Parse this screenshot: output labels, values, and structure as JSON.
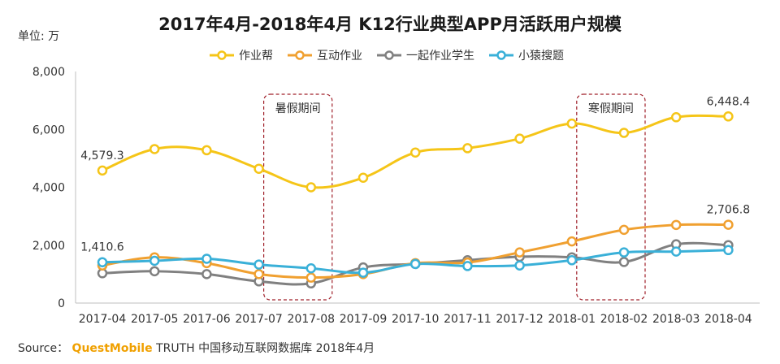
{
  "chart_data": {
    "type": "line",
    "title": "2017年4月-2018年4月 K12行业典型APP月活跃用户规模",
    "unit": "单位: 万",
    "categories": [
      "2017-04",
      "2017-05",
      "2017-06",
      "2017-07",
      "2017-08",
      "2017-09",
      "2017-10",
      "2017-11",
      "2017-12",
      "2018-01",
      "2018-02",
      "2018-03",
      "2018-04"
    ],
    "ylim": [
      0,
      8000
    ],
    "yticks": [
      0,
      2000,
      4000,
      6000,
      8000
    ],
    "ytick_labels": [
      "0",
      "2,000",
      "4,000",
      "6,000",
      "8,000"
    ],
    "grid": false,
    "legend_position": "top",
    "series": [
      {
        "name": "作业帮",
        "color": "#f5c518",
        "values": [
          4579.3,
          5320,
          5280,
          4640,
          4000,
          4330,
          5200,
          5350,
          5680,
          6200,
          5880,
          6420,
          6448.4
        ]
      },
      {
        "name": "互动作业",
        "color": "#f0a030",
        "values": [
          1300,
          1580,
          1380,
          1000,
          880,
          1000,
          1380,
          1400,
          1750,
          2130,
          2530,
          2700,
          2706.8
        ]
      },
      {
        "name": "一起作业学生",
        "color": "#808080",
        "values": [
          1030,
          1100,
          1000,
          750,
          680,
          1230,
          1350,
          1480,
          1600,
          1580,
          1420,
          2030,
          2000
        ]
      },
      {
        "name": "小猿搜题",
        "color": "#3ab0d8",
        "values": [
          1410.6,
          1460,
          1530,
          1330,
          1200,
          1050,
          1350,
          1280,
          1300,
          1480,
          1750,
          1780,
          1830
        ]
      }
    ],
    "annotations": [
      {
        "label": "暑假期间",
        "from": "2017-07",
        "to": "2017-08"
      },
      {
        "label": "寒假期间",
        "from": "2018-01",
        "to": "2018-02"
      }
    ],
    "data_labels": [
      {
        "series": 0,
        "index": 0,
        "text": "4,579.3"
      },
      {
        "series": 0,
        "index": 12,
        "text": "6,448.4"
      },
      {
        "series": 1,
        "index": 12,
        "text": "2,706.8"
      },
      {
        "series": 3,
        "index": 0,
        "text": "1,410.6"
      }
    ]
  },
  "source": {
    "prefix": "Source：",
    "brand": "QuestMobile",
    "rest": "TRUTH 中国移动互联网数据库 2018年4月"
  }
}
